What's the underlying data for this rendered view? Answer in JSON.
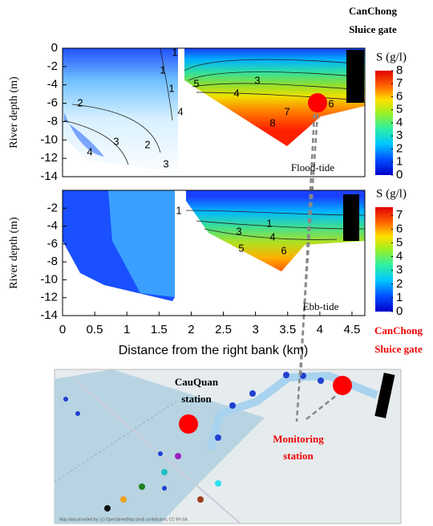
{
  "chart_data": [
    {
      "type": "contour",
      "ylabel": "River depth (m)",
      "annotation": "Flood-tide",
      "xlim": [
        0,
        4.7
      ],
      "ylim": [
        -14,
        0
      ],
      "yticks": [
        0,
        -2,
        -4,
        -6,
        -8,
        -10,
        -12,
        -14
      ],
      "colorbar": {
        "label": "S (g/l)",
        "lim": [
          0,
          8
        ],
        "ticks": [
          0,
          1,
          2,
          3,
          4,
          5,
          6,
          7,
          8
        ]
      },
      "contour_labels": [
        1,
        1,
        1,
        2,
        2,
        3,
        3,
        3,
        4,
        4,
        4,
        5,
        6,
        7,
        8
      ]
    },
    {
      "type": "contour",
      "ylabel": "River depth (m)",
      "xlabel": "Distance from the right bank (km)",
      "annotation": "Ebb-tide",
      "xlim": [
        0,
        4.7
      ],
      "ylim": [
        -14,
        0
      ],
      "yticks": [
        -2,
        -4,
        -6,
        -8,
        -10,
        -12,
        -14
      ],
      "xticks": [
        0,
        0.5,
        1,
        1.5,
        2,
        2.5,
        3,
        3.5,
        4,
        4.5
      ],
      "colorbar": {
        "label": "S (g/l)",
        "lim": [
          0,
          7.6
        ],
        "ticks": [
          0,
          1,
          2,
          3,
          4,
          5,
          6,
          7
        ]
      },
      "contour_labels": [
        1,
        1,
        3,
        4,
        5,
        6
      ]
    }
  ],
  "annotations": {
    "sluice_top": [
      "CanChong",
      "Sluice gate"
    ],
    "sluice_map": [
      "CanChong",
      "Sluice gate"
    ],
    "cauquan": [
      "CauQuan",
      "station"
    ],
    "monitoring": [
      "Monitoring",
      "station"
    ],
    "attribution": "Map data provided by: (c) OpenStreetMap (and) contributors, CC BY-SA"
  }
}
